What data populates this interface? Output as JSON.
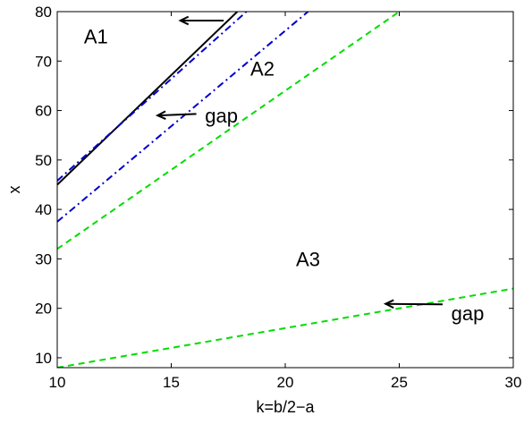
{
  "chart_data": {
    "type": "line",
    "title": "",
    "xlabel": "k=b/2−a",
    "ylabel": "x",
    "xlim": [
      10,
      30
    ],
    "ylim": [
      8,
      80
    ],
    "xticks": [
      10,
      15,
      20,
      25,
      30
    ],
    "yticks": [
      10,
      20,
      30,
      40,
      50,
      60,
      70,
      80
    ],
    "xtick_labels": [
      "10",
      "15",
      "20",
      "25",
      "30"
    ],
    "ytick_labels": [
      "10",
      "20",
      "30",
      "40",
      "50",
      "60",
      "70",
      "80"
    ],
    "grid": false,
    "legend": "none",
    "series": [
      {
        "style": "solid",
        "color": "#000000",
        "x": [
          10,
          17.9
        ],
        "y": [
          45,
          80
        ]
      },
      {
        "style": "dashdot",
        "color": "#0000cc",
        "x": [
          10,
          18.3
        ],
        "y": [
          45.8,
          80
        ]
      },
      {
        "style": "dashdot",
        "color": "#0000cc",
        "x": [
          10,
          21.0
        ],
        "y": [
          37.5,
          80
        ]
      },
      {
        "style": "dashed",
        "color": "#00dd00",
        "x": [
          10,
          25.0
        ],
        "y": [
          32,
          80
        ]
      },
      {
        "style": "dashed",
        "color": "#00dd00",
        "x": [
          10,
          30
        ],
        "y": [
          8,
          24
        ]
      }
    ],
    "annotations": [
      {
        "text": "A1",
        "x": 11.7,
        "y": 75
      },
      {
        "text": "A2",
        "x": 19.0,
        "y": 68.5
      },
      {
        "text": "A3",
        "x": 21.0,
        "y": 30
      },
      {
        "text": "gap",
        "x": 17.2,
        "y": 59
      },
      {
        "text": "gap",
        "x": 28.0,
        "y": 19
      }
    ],
    "arrows": [
      {
        "from": [
          17.3,
          78.2
        ],
        "to": [
          15.4,
          78.2
        ]
      },
      {
        "from": [
          16.1,
          59.3
        ],
        "to": [
          14.4,
          59.0
        ]
      },
      {
        "from": [
          26.9,
          20.8
        ],
        "to": [
          24.4,
          20.9
        ]
      }
    ]
  }
}
